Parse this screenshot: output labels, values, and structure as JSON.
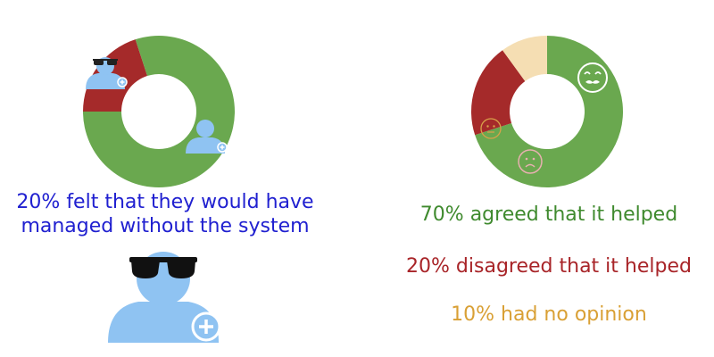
{
  "colors": {
    "green": "#6aa84f",
    "red": "#a52a2a",
    "beige": "#f5deb3",
    "blue": "#8fc3f2",
    "caption_blue": "#2020d0",
    "agree_text": "#3f8a2e",
    "disagree_text": "#a82428",
    "neutral_text": "#d9a035"
  },
  "left_caption": {
    "line1": "20% felt that they would have",
    "line2": "managed without the system"
  },
  "stats": {
    "agree": "70% agreed that it helped",
    "disagree": "20% disagreed that it helped",
    "neutral": "10% had no opinion"
  },
  "icons": [
    "person-sunglasses-plus-icon",
    "person-plus-icon",
    "smiley-mustache-icon",
    "sad-face-icon",
    "neutral-face-icon"
  ],
  "chart_data": [
    {
      "type": "pie",
      "variant": "donut",
      "slices": [
        {
          "label": "felt they would have managed without the system",
          "value": 20,
          "color": "#a52a2a"
        },
        {
          "label": "other",
          "value": 80,
          "color": "#6aa84f"
        }
      ]
    },
    {
      "type": "pie",
      "variant": "donut",
      "slices": [
        {
          "label": "agreed that it helped",
          "value": 70,
          "color": "#6aa84f"
        },
        {
          "label": "disagreed that it helped",
          "value": 20,
          "color": "#a52a2a"
        },
        {
          "label": "had no opinion",
          "value": 10,
          "color": "#f5deb3"
        }
      ]
    }
  ]
}
